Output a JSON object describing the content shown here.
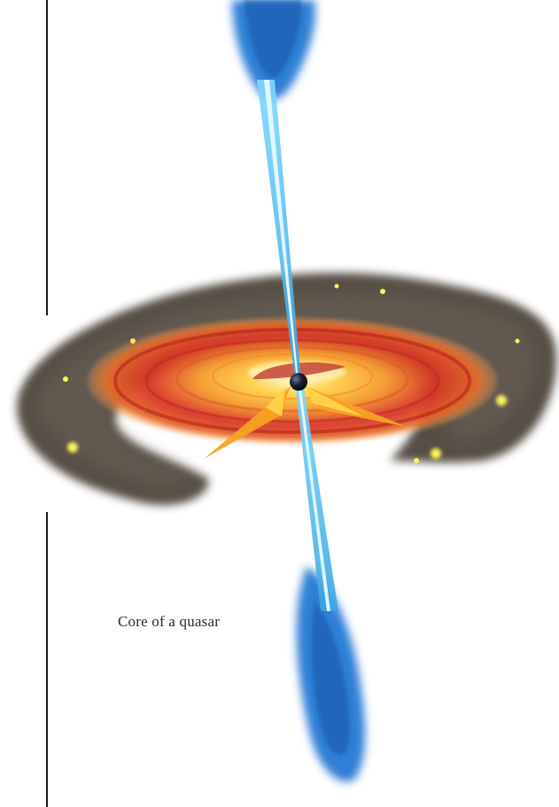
{
  "caption": "Core of a quasar",
  "colors": {
    "rule": "#1a1a1a",
    "jet": "#2f7fd6",
    "jet_core": "#9fe8ff",
    "dust": "#4a4038",
    "disk_outer": "#d8342a",
    "disk_inner": "#ffd24a",
    "wedge": "#f5a321",
    "black_hole": "#1b2230"
  },
  "icons": [
    "black-hole-icon"
  ]
}
